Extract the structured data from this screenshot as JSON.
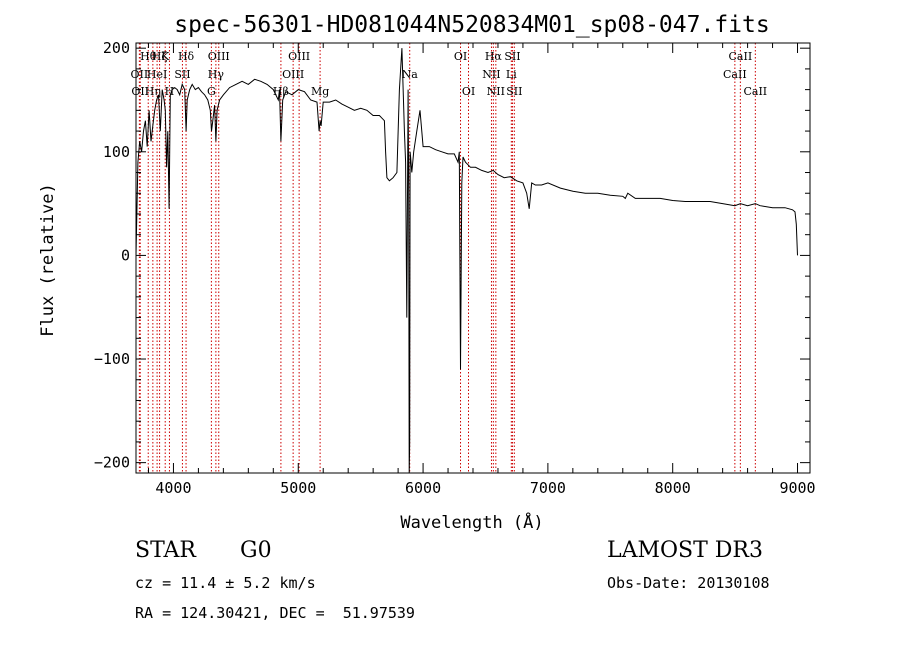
{
  "chart_data": {
    "type": "line",
    "title": "spec-56301-HD081044N520834M01_sp08-047.fits",
    "xlabel": "Wavelength (Å)",
    "ylabel": "Flux (relative)",
    "xlim": [
      3700,
      9100
    ],
    "ylim": [
      -210,
      205
    ],
    "xticks": [
      4000,
      5000,
      6000,
      7000,
      8000,
      9000
    ],
    "yticks": [
      -200,
      -100,
      0,
      100,
      200
    ],
    "grid": false,
    "line_color": "#000000",
    "marker_color": "#cc0000",
    "series": [
      {
        "x": [
          3700,
          3715,
          3730,
          3745,
          3760,
          3775,
          3790,
          3805,
          3820,
          3835,
          3850,
          3865,
          3880,
          3895,
          3910,
          3925,
          3935,
          3945,
          3955,
          3965,
          3975,
          3990,
          4010,
          4030,
          4050,
          4070,
          4090,
          4101,
          4110,
          4130,
          4150,
          4175,
          4200,
          4225,
          4250,
          4275,
          4295,
          4305,
          4315,
          4330,
          4340,
          4350,
          4370,
          4400,
          4450,
          4500,
          4550,
          4600,
          4650,
          4700,
          4750,
          4800,
          4840,
          4850,
          4861,
          4875,
          4900,
          4950,
          5000,
          5050,
          5100,
          5150,
          5167,
          5175,
          5183,
          5200,
          5250,
          5300,
          5350,
          5400,
          5450,
          5500,
          5550,
          5600,
          5650,
          5690,
          5700,
          5710,
          5730,
          5760,
          5790,
          5810,
          5830,
          5850,
          5860,
          5870,
          5880,
          5885,
          5889,
          5893,
          5896,
          5900,
          5910,
          5925,
          5950,
          5975,
          6000,
          6050,
          6100,
          6150,
          6200,
          6250,
          6280,
          6290,
          6300,
          6310,
          6320,
          6340,
          6380,
          6420,
          6470,
          6520,
          6562,
          6600,
          6650,
          6700,
          6750,
          6800,
          6830,
          6850,
          6870,
          6900,
          6950,
          7000,
          7100,
          7200,
          7300,
          7400,
          7500,
          7600,
          7620,
          7640,
          7700,
          7800,
          7900,
          8000,
          8100,
          8200,
          8300,
          8400,
          8498,
          8542,
          8600,
          8662,
          8700,
          8800,
          8900,
          8960,
          8980,
          8990,
          9000
        ],
        "y": [
          0,
          90,
          110,
          100,
          120,
          130,
          105,
          140,
          110,
          125,
          140,
          150,
          155,
          120,
          160,
          150,
          140,
          85,
          120,
          45,
          155,
          160,
          162,
          160,
          155,
          165,
          160,
          120,
          150,
          160,
          165,
          160,
          162,
          158,
          155,
          150,
          140,
          120,
          130,
          145,
          110,
          140,
          150,
          155,
          162,
          165,
          168,
          165,
          170,
          168,
          165,
          160,
          150,
          160,
          110,
          150,
          158,
          155,
          160,
          158,
          150,
          148,
          120,
          130,
          125,
          148,
          148,
          150,
          146,
          143,
          140,
          142,
          140,
          135,
          135,
          130,
          100,
          75,
          72,
          75,
          80,
          160,
          200,
          120,
          90,
          -60,
          160,
          60,
          -210,
          -180,
          100,
          95,
          80,
          100,
          120,
          140,
          105,
          105,
          102,
          100,
          98,
          98,
          90,
          100,
          -110,
          70,
          95,
          90,
          85,
          85,
          82,
          80,
          82,
          78,
          75,
          76,
          72,
          70,
          60,
          45,
          70,
          68,
          68,
          70,
          65,
          62,
          60,
          60,
          58,
          57,
          55,
          60,
          55,
          55,
          55,
          53,
          52,
          52,
          52,
          50,
          48,
          50,
          48,
          50,
          48,
          46,
          46,
          44,
          42,
          30,
          0
        ]
      }
    ],
    "line_markers": [
      {
        "x": 3727,
        "label": "OII",
        "row": 2
      },
      {
        "x": 3734,
        "label": "OII",
        "row": 3
      },
      {
        "x": 3798,
        "label": "Hθ",
        "row": 1
      },
      {
        "x": 3835,
        "label": "Hη",
        "row": 3
      },
      {
        "x": 3869,
        "label": "HeI",
        "row": 2
      },
      {
        "x": 3889,
        "label": "Hζ",
        "row": 1
      },
      {
        "x": 3934,
        "label": "K",
        "row": 1
      },
      {
        "x": 3968,
        "label": "H",
        "row": 3
      },
      {
        "x": 4072,
        "label": "SII",
        "row": 2
      },
      {
        "x": 4101,
        "label": "Hδ",
        "row": 1
      },
      {
        "x": 4304,
        "label": "G",
        "row": 3
      },
      {
        "x": 4340,
        "label": "Hγ",
        "row": 2
      },
      {
        "x": 4363,
        "label": "OIII",
        "row": 1
      },
      {
        "x": 4861,
        "label": "Hβ",
        "row": 3
      },
      {
        "x": 4959,
        "label": "OIII",
        "row": 2
      },
      {
        "x": 5007,
        "label": "OIII",
        "row": 1
      },
      {
        "x": 5175,
        "label": "Mg",
        "row": 3
      },
      {
        "x": 5893,
        "label": "Na",
        "row": 2
      },
      {
        "x": 6300,
        "label": "OI",
        "row": 1
      },
      {
        "x": 6364,
        "label": "OI",
        "row": 3
      },
      {
        "x": 6548,
        "label": "NII",
        "row": 2
      },
      {
        "x": 6563,
        "label": "Hα",
        "row": 1
      },
      {
        "x": 6583,
        "label": "NII",
        "row": 3
      },
      {
        "x": 6707,
        "label": "Li",
        "row": 2
      },
      {
        "x": 6716,
        "label": "SII",
        "row": 1
      },
      {
        "x": 6731,
        "label": "SII",
        "row": 3
      },
      {
        "x": 8498,
        "label": "CaII",
        "row": 2
      },
      {
        "x": 8542,
        "label": "CaII",
        "row": 1
      },
      {
        "x": 8662,
        "label": "CaII",
        "row": 3
      }
    ]
  },
  "info": {
    "class": "STAR",
    "subclass": "G0",
    "survey": "LAMOST DR3",
    "redshift": "cz = 11.4 ± 5.2 km/s",
    "obs_date": "Obs-Date: 20130108",
    "coords": "RA = 124.30421, DEC =  51.97539"
  }
}
